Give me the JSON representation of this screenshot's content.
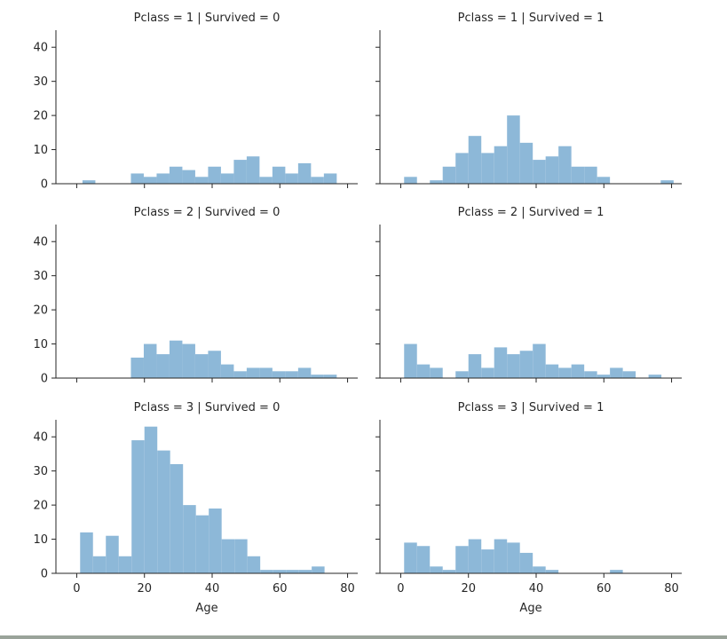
{
  "chart_data": {
    "type": "bar",
    "layout": "facet-grid histogram, 3 rows x 2 columns, shared axes",
    "xlabel": "Age",
    "ylabel": "",
    "xlim": [
      -3,
      83
    ],
    "ylim": [
      0,
      45
    ],
    "xticks": [
      0,
      20,
      40,
      60,
      80
    ],
    "yticks": [
      0,
      10,
      20,
      30,
      40
    ],
    "bin_width": 3.8,
    "bar_color": "#8db8d8",
    "grid": false,
    "legend": "none",
    "panels": [
      {
        "title": "Pclass = 1 | Survived = 0",
        "bins": [
          {
            "x": 1.7,
            "count": 1
          },
          {
            "x": 16.0,
            "count": 3
          },
          {
            "x": 19.8,
            "count": 2
          },
          {
            "x": 23.6,
            "count": 3
          },
          {
            "x": 27.4,
            "count": 5
          },
          {
            "x": 31.2,
            "count": 4
          },
          {
            "x": 35.0,
            "count": 2
          },
          {
            "x": 38.8,
            "count": 5
          },
          {
            "x": 42.6,
            "count": 3
          },
          {
            "x": 46.4,
            "count": 7
          },
          {
            "x": 50.2,
            "count": 8
          },
          {
            "x": 54.0,
            "count": 2
          },
          {
            "x": 57.8,
            "count": 5
          },
          {
            "x": 61.6,
            "count": 3
          },
          {
            "x": 65.4,
            "count": 6
          },
          {
            "x": 69.2,
            "count": 2
          },
          {
            "x": 73.0,
            "count": 3
          }
        ]
      },
      {
        "title": "Pclass = 1 | Survived = 1",
        "bins": [
          {
            "x": 1.0,
            "count": 2
          },
          {
            "x": 8.6,
            "count": 1
          },
          {
            "x": 12.4,
            "count": 5
          },
          {
            "x": 16.2,
            "count": 9
          },
          {
            "x": 20.0,
            "count": 14
          },
          {
            "x": 23.8,
            "count": 9
          },
          {
            "x": 27.6,
            "count": 11
          },
          {
            "x": 31.4,
            "count": 20
          },
          {
            "x": 35.2,
            "count": 12
          },
          {
            "x": 39.0,
            "count": 7
          },
          {
            "x": 42.8,
            "count": 8
          },
          {
            "x": 46.6,
            "count": 11
          },
          {
            "x": 50.4,
            "count": 5
          },
          {
            "x": 54.2,
            "count": 5
          },
          {
            "x": 58.0,
            "count": 2
          },
          {
            "x": 76.8,
            "count": 1
          }
        ]
      },
      {
        "title": "Pclass = 2 | Survived = 0",
        "bins": [
          {
            "x": 16.0,
            "count": 6
          },
          {
            "x": 19.8,
            "count": 10
          },
          {
            "x": 23.6,
            "count": 7
          },
          {
            "x": 27.4,
            "count": 11
          },
          {
            "x": 31.2,
            "count": 10
          },
          {
            "x": 35.0,
            "count": 7
          },
          {
            "x": 38.8,
            "count": 8
          },
          {
            "x": 42.6,
            "count": 4
          },
          {
            "x": 46.4,
            "count": 2
          },
          {
            "x": 50.2,
            "count": 3
          },
          {
            "x": 54.0,
            "count": 3
          },
          {
            "x": 57.8,
            "count": 2
          },
          {
            "x": 61.6,
            "count": 2
          },
          {
            "x": 65.4,
            "count": 3
          },
          {
            "x": 69.2,
            "count": 1
          },
          {
            "x": 73.0,
            "count": 1
          }
        ]
      },
      {
        "title": "Pclass = 2 | Survived = 1",
        "bins": [
          {
            "x": 1.0,
            "count": 10
          },
          {
            "x": 4.8,
            "count": 4
          },
          {
            "x": 8.6,
            "count": 3
          },
          {
            "x": 16.2,
            "count": 2
          },
          {
            "x": 20.0,
            "count": 7
          },
          {
            "x": 23.8,
            "count": 3
          },
          {
            "x": 27.6,
            "count": 9
          },
          {
            "x": 31.4,
            "count": 7
          },
          {
            "x": 35.2,
            "count": 8
          },
          {
            "x": 39.0,
            "count": 10
          },
          {
            "x": 42.8,
            "count": 4
          },
          {
            "x": 46.6,
            "count": 3
          },
          {
            "x": 50.4,
            "count": 4
          },
          {
            "x": 54.2,
            "count": 2
          },
          {
            "x": 58.0,
            "count": 1
          },
          {
            "x": 61.8,
            "count": 3
          },
          {
            "x": 65.6,
            "count": 2
          },
          {
            "x": 73.2,
            "count": 1
          }
        ]
      },
      {
        "title": "Pclass = 3 | Survived = 0",
        "bins": [
          {
            "x": 1.0,
            "count": 12
          },
          {
            "x": 4.8,
            "count": 5
          },
          {
            "x": 8.6,
            "count": 11
          },
          {
            "x": 12.4,
            "count": 5
          },
          {
            "x": 16.2,
            "count": 39
          },
          {
            "x": 20.0,
            "count": 43
          },
          {
            "x": 23.8,
            "count": 36
          },
          {
            "x": 27.6,
            "count": 32
          },
          {
            "x": 31.4,
            "count": 20
          },
          {
            "x": 35.2,
            "count": 17
          },
          {
            "x": 39.0,
            "count": 19
          },
          {
            "x": 42.8,
            "count": 10
          },
          {
            "x": 46.6,
            "count": 10
          },
          {
            "x": 50.4,
            "count": 5
          },
          {
            "x": 54.2,
            "count": 1
          },
          {
            "x": 58.0,
            "count": 1
          },
          {
            "x": 61.8,
            "count": 1
          },
          {
            "x": 65.6,
            "count": 1
          },
          {
            "x": 69.4,
            "count": 2
          }
        ]
      },
      {
        "title": "Pclass = 3 | Survived = 1",
        "bins": [
          {
            "x": 1.0,
            "count": 9
          },
          {
            "x": 4.8,
            "count": 8
          },
          {
            "x": 8.6,
            "count": 2
          },
          {
            "x": 12.4,
            "count": 1
          },
          {
            "x": 16.2,
            "count": 8
          },
          {
            "x": 20.0,
            "count": 10
          },
          {
            "x": 23.8,
            "count": 7
          },
          {
            "x": 27.6,
            "count": 10
          },
          {
            "x": 31.4,
            "count": 9
          },
          {
            "x": 35.2,
            "count": 6
          },
          {
            "x": 39.0,
            "count": 2
          },
          {
            "x": 42.8,
            "count": 1
          },
          {
            "x": 61.8,
            "count": 1
          }
        ]
      }
    ]
  }
}
